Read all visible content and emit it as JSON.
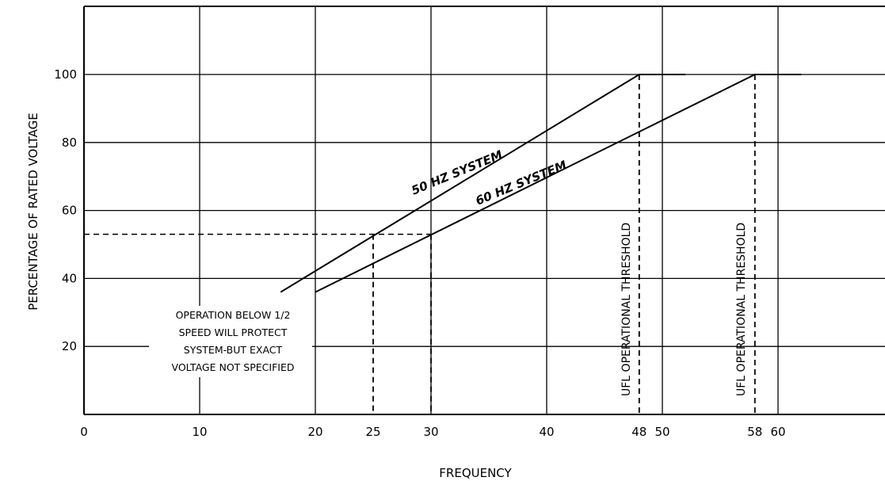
{
  "chart_data": {
    "type": "line",
    "xlabel": "FREQUENCY",
    "ylabel": "PERCENTAGE OF RATED VOLTAGE",
    "xlim": [
      0,
      70
    ],
    "ylim": [
      0,
      120
    ],
    "x_ticks": [
      0,
      10,
      20,
      25,
      30,
      40,
      48,
      50,
      58,
      60
    ],
    "x_tick_labels": [
      "0",
      "10",
      "20",
      "25",
      "30",
      "40",
      "48",
      "50",
      "58",
      "60"
    ],
    "x_grid": [
      10,
      20,
      30,
      40,
      50,
      60
    ],
    "y_ticks": [
      20,
      40,
      60,
      80,
      100
    ],
    "y_tick_labels": [
      "20",
      "40",
      "60",
      "80",
      "100"
    ],
    "grid": true,
    "series": [
      {
        "name": "50 HZ SYSTEM",
        "x": [
          17,
          48,
          52
        ],
        "y": [
          36,
          100,
          100
        ]
      },
      {
        "name": "60 HZ SYSTEM",
        "x": [
          20,
          58,
          62
        ],
        "y": [
          36,
          100,
          100
        ]
      }
    ],
    "thresholds": [
      {
        "x": 48,
        "label": "UFL OPERATIONAL THRESHOLD"
      },
      {
        "x": 58,
        "label": "UFL OPERATIONAL THRESHOLD"
      }
    ],
    "reference_level": {
      "y": 53,
      "x_marks": [
        25,
        30
      ]
    },
    "annotation": [
      "OPERATION BELOW 1/2",
      "SPEED WILL PROTECT",
      "SYSTEM-BUT EXACT",
      "VOLTAGE NOT SPECIFIED"
    ]
  }
}
